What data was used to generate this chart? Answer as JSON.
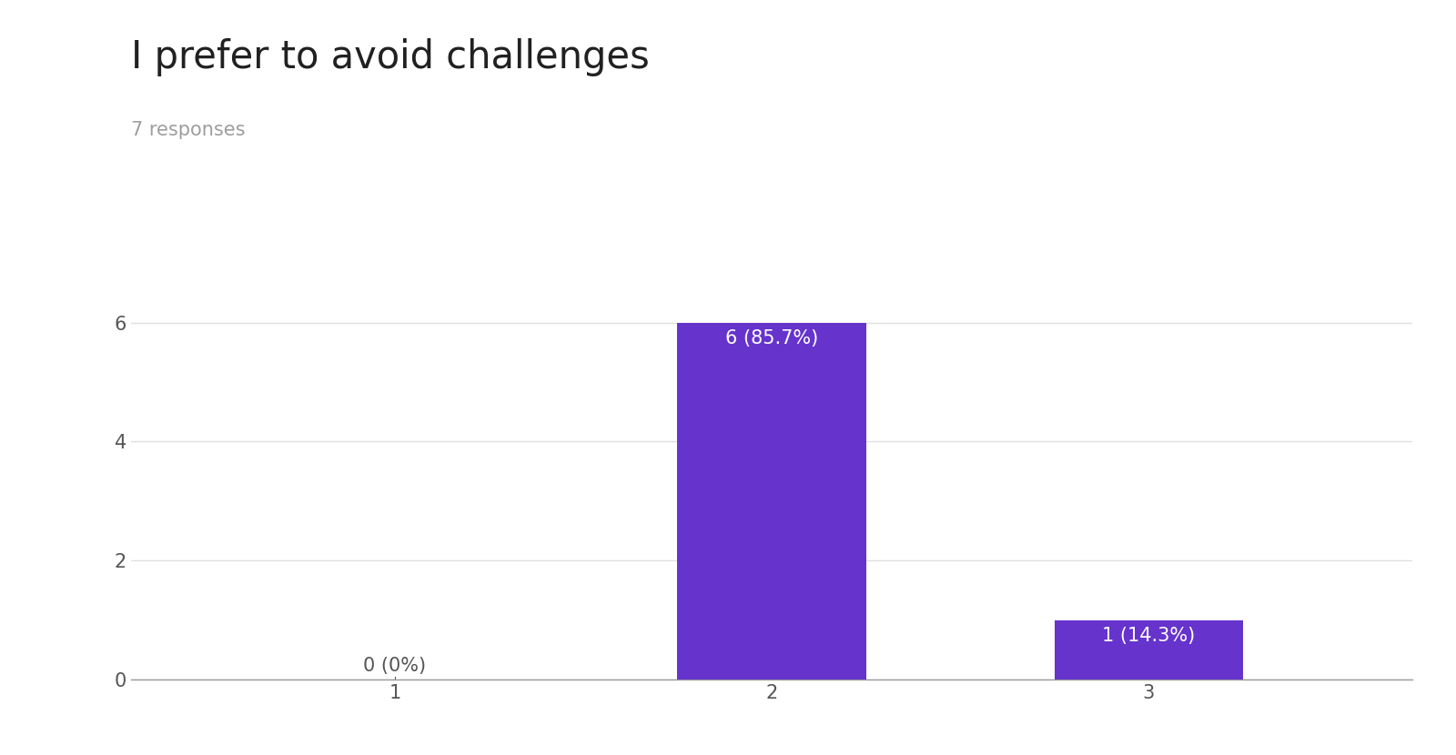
{
  "title": "I prefer to avoid challenges",
  "subtitle": "7 responses",
  "categories": [
    1,
    2,
    3
  ],
  "values": [
    0,
    6,
    1
  ],
  "labels": [
    "0 (0%)",
    "6 (85.7%)",
    "1 (14.3%)"
  ],
  "bar_color": "#6633cc",
  "label_color_inside": "#ffffff",
  "label_color_outside": "#555555",
  "background_color": "#ffffff",
  "title_fontsize": 30,
  "subtitle_fontsize": 15,
  "tick_fontsize": 15,
  "label_fontsize": 15,
  "ylim": [
    0,
    6.6
  ],
  "yticks": [
    0,
    2,
    4,
    6
  ],
  "grid_color": "#e0e0e0",
  "bar_width": 0.5
}
